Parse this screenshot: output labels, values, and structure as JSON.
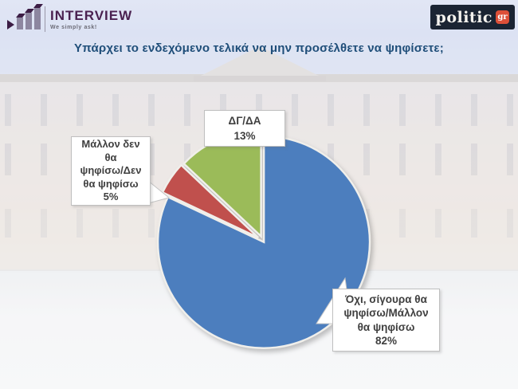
{
  "header": {
    "interview_logo": {
      "name": "INTERVIEW",
      "tagline": "We simply ask!",
      "brand_color": "#4A2150"
    },
    "politic_logo": {
      "name": "politic",
      "suffix": "gr",
      "bg_color": "#1B2433",
      "badge_color": "#DD4F38"
    }
  },
  "title": "Υπάρχει το ενδεχόμενο τελικά να μην προσέλθετε να ψηφίσετε;",
  "title_color": "#1F4E79",
  "chart_data": {
    "type": "pie",
    "title": "Υπάρχει το ενδεχόμενο τελικά να μην προσέλθετε να ψηφίσετε;",
    "start_angle_deg": 0,
    "direction": "clockwise",
    "legend": "none",
    "data_labels": "callout-boxes",
    "slices": [
      {
        "label": "Όχι, σίγουρα θα ψηφίσω/Μάλλον θα ψηφίσω",
        "value": 82,
        "pct_label": "82%",
        "color": "#4C7EBE"
      },
      {
        "label": "Μάλλον δεν θα ψηφίσω/Δεν θα ψηφίσω",
        "value": 5,
        "pct_label": "5%",
        "color": "#C0504D"
      },
      {
        "label": "ΔΓ/ΔΑ",
        "value": 13,
        "pct_label": "13%",
        "color": "#9BBB59"
      }
    ]
  },
  "callouts": {
    "dgda": {
      "lines": [
        "ΔΓ/ΔΑ",
        "13%"
      ]
    },
    "no_vote": {
      "lines": [
        "Μάλλον δεν",
        "θα",
        "ψηφίσω/Δεν",
        "θα ψηφίσω",
        "5%"
      ]
    },
    "yes_vote": {
      "lines": [
        "Όχι, σίγουρα θα",
        "ψηφίσω/Μάλλον",
        "θα ψηφίσω",
        "82%"
      ]
    }
  }
}
